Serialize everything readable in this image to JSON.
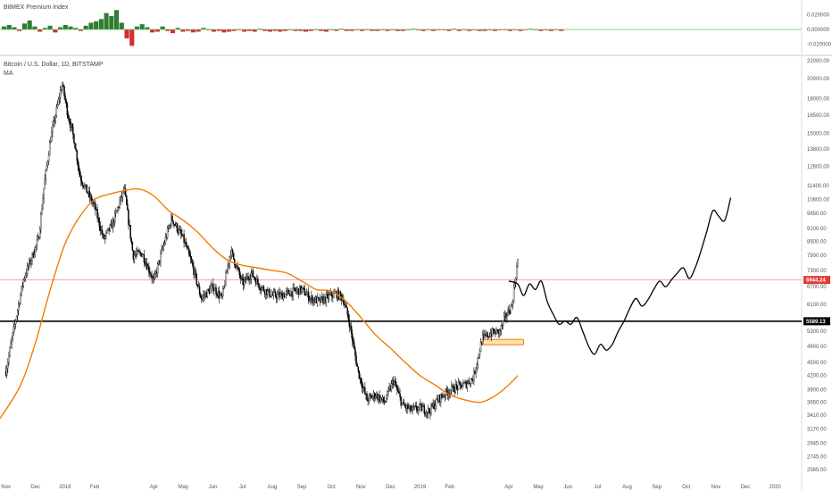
{
  "colors": {
    "background": "#ffffff",
    "candle": "#000000",
    "moving_average": "#f57c00",
    "current_price_line": "#ef9a9a",
    "current_price_tag": "#e53935",
    "support_line": "#000000",
    "support_tag": "#000000",
    "zone_fill": "#ffe0b2",
    "zone_stroke": "#f57c00",
    "premium_positive": "#2e7d32",
    "premium_negative": "#d32f2f",
    "premium_zero_line": "#66bb6a",
    "projection": "#000000",
    "grid": "#e6e6e6"
  },
  "chart_data": [
    {
      "type": "bar",
      "title": "BitMEX Premium Index",
      "ylim": [
        -0.03,
        0.03
      ],
      "y_ticks": [
        "0.020000",
        "0.000000",
        "-0.020000"
      ],
      "zero_line": 0.0,
      "series": [
        {
          "values": [
            0.004,
            0.006,
            0.003,
            -0.002,
            0.008,
            0.012,
            0.004,
            -0.003,
            0.002,
            0.005,
            -0.004,
            0.003,
            0.006,
            0.004,
            0.002,
            -0.002,
            0.005,
            0.009,
            0.011,
            0.014,
            0.022,
            0.018,
            0.026,
            0.009,
            -0.012,
            -0.022,
            0.004,
            0.007,
            0.003,
            -0.004,
            -0.003,
            0.004,
            -0.002,
            -0.005,
            0.002,
            -0.003,
            -0.002,
            -0.004,
            -0.003,
            0.002,
            -0.001,
            -0.003,
            -0.002,
            -0.004,
            -0.003,
            -0.002,
            -0.001,
            -0.003,
            -0.002,
            -0.003,
            0.001,
            -0.002,
            -0.003,
            -0.002,
            -0.003,
            -0.002,
            -0.001,
            -0.002,
            -0.002,
            -0.003,
            -0.002,
            -0.001,
            -0.002,
            -0.003,
            -0.001,
            -0.002,
            0.001,
            -0.002,
            -0.002,
            -0.001,
            -0.002,
            -0.001,
            -0.002,
            -0.002,
            -0.001,
            -0.002,
            -0.001,
            -0.002,
            -0.002,
            -0.001,
            0.001,
            -0.001,
            -0.002,
            -0.001,
            -0.002,
            -0.001,
            -0.001,
            -0.002,
            0.001,
            -0.002,
            -0.001,
            -0.002,
            -0.001,
            -0.002,
            -0.002,
            -0.001,
            -0.002,
            -0.001,
            -0.001,
            -0.002,
            -0.001,
            -0.002,
            -0.001,
            0.001,
            -0.001,
            -0.002,
            -0.001,
            -0.002,
            -0.001,
            -0.002
          ]
        }
      ]
    },
    {
      "type": "line",
      "title": "Bitcoin / U.S. Dollar, 1D, BITSTAMP",
      "legend": [
        "MA"
      ],
      "ylim": [
        2400,
        22400
      ],
      "y_scale": "log",
      "y_ticks": [
        22000,
        20000,
        18000,
        16500,
        15000,
        13800,
        12600,
        11400,
        10600,
        9850,
        9100,
        8500,
        7900,
        7300,
        6700,
        6100,
        5300,
        4900,
        4500,
        4200,
        3900,
        3650,
        3410,
        3170,
        2945,
        2745,
        2565
      ],
      "x_labels": [
        "Nov",
        "Dec",
        "2018",
        "Feb",
        "Apr",
        "May",
        "Jun",
        "Jul",
        "Aug",
        "Sep",
        "Oct",
        "Nov",
        "Dec",
        "2019",
        "Feb",
        "Apr",
        "May",
        "Jun",
        "Jul",
        "Aug",
        "Sep",
        "Oct",
        "Nov",
        "Dec",
        "2020"
      ],
      "x_ticks_month_index": [
        0,
        1,
        2,
        3,
        5,
        6,
        7,
        8,
        9,
        10,
        11,
        12,
        13,
        14,
        15,
        17,
        18,
        19,
        20,
        21,
        22,
        23,
        24,
        25,
        26
      ],
      "x_range_months": [
        -0.2,
        26.9
      ],
      "series": [
        {
          "name": "Price",
          "kind": "candles",
          "x": [
            0,
            0.3,
            0.6,
            0.9,
            1.1,
            1.3,
            1.5,
            1.7,
            1.9,
            2.1,
            2.3,
            2.5,
            2.7,
            3.0,
            3.3,
            3.6,
            4.0,
            4.3,
            4.6,
            5.0,
            5.3,
            5.6,
            6.0,
            6.3,
            6.6,
            7.0,
            7.3,
            7.6,
            8.0,
            8.3,
            8.6,
            9.0,
            9.3,
            9.6,
            10.0,
            10.3,
            10.6,
            11.0,
            11.2,
            11.4,
            11.6,
            11.9,
            12.2,
            12.5,
            12.8,
            13.1,
            13.4,
            13.7,
            14.0,
            14.3,
            14.6,
            14.9,
            15.2,
            15.5,
            15.8,
            16.1,
            16.4,
            16.7,
            16.9,
            17.1,
            17.3
          ],
          "y": [
            4300,
            5500,
            7000,
            7900,
            8600,
            11500,
            14500,
            16800,
            19500,
            16500,
            14600,
            12000,
            11200,
            10200,
            8600,
            9300,
            11200,
            7900,
            8000,
            6900,
            8200,
            9600,
            8600,
            7500,
            6300,
            6700,
            6300,
            8100,
            6800,
            7200,
            6700,
            6400,
            6400,
            6500,
            6600,
            6300,
            6200,
            6400,
            6450,
            6300,
            5600,
            4300,
            3700,
            3800,
            3650,
            4100,
            3600,
            3500,
            3550,
            3480,
            3700,
            3850,
            3950,
            4000,
            4150,
            5100,
            5250,
            5300,
            5750,
            6050,
            7700
          ]
        },
        {
          "name": "MA",
          "x": [
            -0.2,
            0.5,
            1.0,
            1.5,
            2.0,
            2.5,
            3.0,
            3.5,
            4.0,
            4.5,
            5.0,
            5.5,
            6.0,
            6.5,
            7.0,
            7.5,
            8.0,
            8.5,
            9.0,
            9.5,
            10.0,
            10.5,
            11.0,
            11.5,
            12.0,
            12.5,
            13.0,
            13.5,
            14.0,
            14.5,
            15.0,
            15.5,
            16.0,
            16.3,
            16.6,
            17.0,
            17.3
          ],
          "y": [
            3350,
            4000,
            5000,
            6600,
            8400,
            9700,
            10600,
            10900,
            11100,
            11200,
            10800,
            10000,
            9500,
            8900,
            8200,
            7700,
            7500,
            7400,
            7300,
            7200,
            6900,
            6600,
            6550,
            6200,
            5700,
            5200,
            4850,
            4500,
            4200,
            4000,
            3800,
            3700,
            3650,
            3700,
            3800,
            4000,
            4200
          ]
        },
        {
          "name": "Projection",
          "x": [
            17.0,
            17.3,
            17.5,
            17.7,
            17.9,
            18.1,
            18.3,
            18.5,
            18.7,
            18.9,
            19.1,
            19.3,
            19.5,
            19.7,
            19.9,
            20.1,
            20.3,
            20.5,
            20.7,
            20.9,
            21.1,
            21.3,
            21.5,
            21.7,
            21.9,
            22.1,
            22.3,
            22.5,
            22.7,
            22.9,
            23.1,
            23.3,
            23.5,
            23.7,
            23.9,
            24.1,
            24.3,
            24.5
          ],
          "y": [
            6900,
            6800,
            6400,
            6800,
            6600,
            6900,
            6200,
            5800,
            5500,
            5600,
            5500,
            5700,
            5300,
            4900,
            4700,
            4950,
            4800,
            4950,
            5300,
            5600,
            6000,
            6300,
            6050,
            6250,
            6600,
            6900,
            6700,
            6950,
            7200,
            7400,
            7000,
            7400,
            8100,
            9000,
            10000,
            9700,
            9500,
            10700
          ]
        }
      ],
      "price_tags": [
        "6944.24",
        "5589.13"
      ],
      "horizontal_lines": [
        6944.24,
        5589.13
      ],
      "zone": {
        "x": [
          16.1,
          17.5
        ],
        "y": [
          4940,
          5080
        ]
      }
    }
  ]
}
